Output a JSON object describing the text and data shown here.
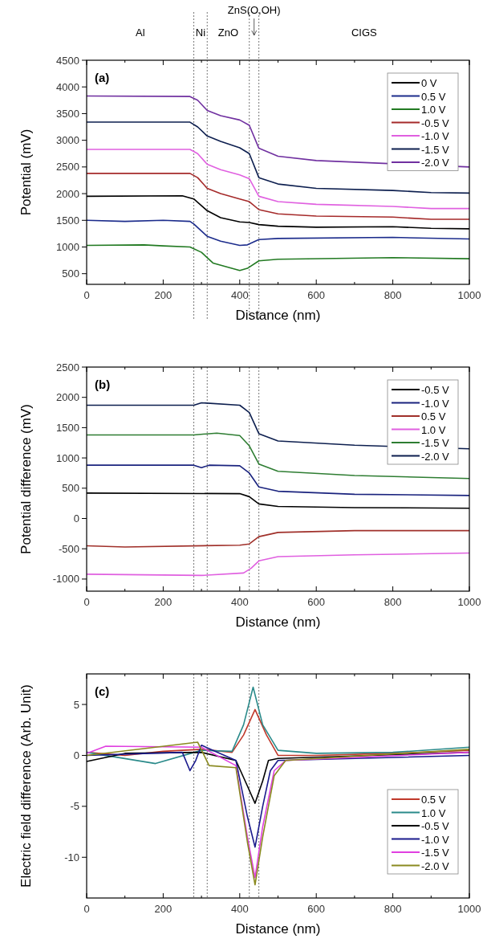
{
  "chart_data": [
    {
      "type": "line",
      "xlabel": "Distance (nm)",
      "ylabel": "Potential (mV)",
      "xlim": [
        0,
        1000
      ],
      "ylim": [
        300,
        4500
      ],
      "xticks": [
        0,
        {
          "value": 100,
          "label": null
        },
        200,
        {
          "value": 300,
          "label": null
        },
        400,
        {
          "value": 500,
          "label": null
        },
        600,
        {
          "value": 700,
          "label": null
        },
        800,
        {
          "value": 900,
          "label": null
        },
        1000
      ],
      "yticks": [
        500,
        1000,
        1500,
        2000,
        2500,
        3000,
        3500,
        4000,
        4500
      ],
      "grid": false,
      "legend": "top right",
      "line_style": "solid",
      "marker": "none",
      "annotations": [
        "(a)",
        "Al",
        "Ni",
        "ZnO",
        "ZnS(O,OH)",
        "CIGS"
      ],
      "ref_lines": [
        {
          "axis": "x",
          "value": 280,
          "line_style": "dotted"
        },
        {
          "axis": "x",
          "value": 315,
          "line_style": "dotted"
        },
        {
          "axis": "x",
          "value": 425,
          "line_style": "dotted"
        },
        {
          "axis": "x",
          "value": 450,
          "line_style": "dotted"
        }
      ],
      "series": [
        {
          "name": "0 V",
          "color": "#000000",
          "x": [
            0,
            250,
            280,
            315,
            350,
            400,
            425,
            450,
            500,
            600,
            800,
            900,
            1000
          ],
          "values": [
            1950,
            1960,
            1900,
            1680,
            1550,
            1470,
            1460,
            1420,
            1390,
            1370,
            1380,
            1350,
            1340
          ]
        },
        {
          "name": "0.5 V",
          "color": "#1c2c8c",
          "x": [
            0,
            100,
            200,
            270,
            280,
            315,
            350,
            400,
            420,
            450,
            500,
            800,
            1000
          ],
          "values": [
            1500,
            1480,
            1500,
            1480,
            1430,
            1200,
            1110,
            1030,
            1040,
            1140,
            1160,
            1180,
            1150
          ]
        },
        {
          "name": "1.0 V",
          "color": "#227a22",
          "x": [
            0,
            150,
            200,
            270,
            300,
            330,
            400,
            420,
            450,
            500,
            800,
            1000
          ],
          "values": [
            1030,
            1040,
            1020,
            1000,
            900,
            700,
            560,
            600,
            740,
            770,
            800,
            780
          ]
        },
        {
          "name": "-0.5 V",
          "color": "#a52a2a",
          "x": [
            0,
            270,
            290,
            315,
            350,
            400,
            425,
            450,
            500,
            600,
            800,
            900,
            1000
          ],
          "values": [
            2380,
            2380,
            2300,
            2100,
            2000,
            1900,
            1850,
            1700,
            1620,
            1580,
            1560,
            1520,
            1520
          ]
        },
        {
          "name": "-1.0 V",
          "color": "#e060e0",
          "x": [
            0,
            270,
            290,
            315,
            350,
            400,
            425,
            450,
            500,
            600,
            800,
            900,
            1000
          ],
          "values": [
            2830,
            2830,
            2750,
            2550,
            2450,
            2350,
            2280,
            1950,
            1850,
            1800,
            1760,
            1720,
            1720
          ]
        },
        {
          "name": "-1.5 V",
          "color": "#0d1f4f",
          "x": [
            0,
            270,
            290,
            315,
            350,
            400,
            425,
            450,
            500,
            600,
            800,
            900,
            1000
          ],
          "values": [
            3340,
            3340,
            3250,
            3080,
            2980,
            2860,
            2750,
            2300,
            2180,
            2100,
            2060,
            2020,
            2010
          ]
        },
        {
          "name": "-2.0 V",
          "color": "#7030a0",
          "x": [
            0,
            270,
            290,
            315,
            350,
            400,
            425,
            450,
            500,
            600,
            800,
            1000
          ],
          "values": [
            3830,
            3820,
            3750,
            3560,
            3460,
            3380,
            3280,
            2850,
            2700,
            2620,
            2560,
            2500
          ]
        }
      ]
    },
    {
      "type": "line",
      "xlabel": "Distance (nm)",
      "ylabel": "Potential difference (mV)",
      "xlim": [
        0,
        1000
      ],
      "ylim": [
        -1200,
        2500
      ],
      "xticks": [
        0,
        {
          "value": 100,
          "label": null
        },
        200,
        {
          "value": 300,
          "label": null
        },
        400,
        {
          "value": 500,
          "label": null
        },
        600,
        {
          "value": 700,
          "label": null
        },
        800,
        {
          "value": 900,
          "label": null
        },
        1000
      ],
      "yticks": [
        -1000,
        -500,
        0,
        500,
        1000,
        1500,
        2000,
        2500
      ],
      "grid": false,
      "legend": "top right",
      "line_style": "solid",
      "marker": "none",
      "annotations": [
        "(b)"
      ],
      "ref_lines": [
        {
          "axis": "x",
          "value": 280,
          "line_style": "dotted"
        },
        {
          "axis": "x",
          "value": 315,
          "line_style": "dotted"
        },
        {
          "axis": "x",
          "value": 425,
          "line_style": "dotted"
        },
        {
          "axis": "x",
          "value": 450,
          "line_style": "dotted"
        }
      ],
      "series": [
        {
          "name": "-0.5 V",
          "color": "#000000",
          "x": [
            0,
            400,
            425,
            450,
            500,
            700,
            1000
          ],
          "values": [
            420,
            410,
            360,
            240,
            200,
            180,
            170
          ]
        },
        {
          "name": "-1.0 V",
          "color": "#1a237e",
          "x": [
            0,
            280,
            300,
            320,
            400,
            425,
            450,
            500,
            700,
            1000
          ],
          "values": [
            880,
            880,
            840,
            880,
            870,
            750,
            520,
            450,
            400,
            380
          ]
        },
        {
          "name": "0.5 V",
          "color": "#a0302a",
          "x": [
            0,
            100,
            400,
            425,
            450,
            500,
            700,
            1000
          ],
          "values": [
            -450,
            -470,
            -440,
            -420,
            -300,
            -230,
            -200,
            -200
          ]
        },
        {
          "name": "1.0 V",
          "color": "#e060e0",
          "x": [
            0,
            300,
            410,
            430,
            450,
            500,
            700,
            1000
          ],
          "values": [
            -920,
            -940,
            -900,
            -820,
            -700,
            -630,
            -600,
            -570
          ]
        },
        {
          "name": "-1.5 V",
          "color": "#2e7d32",
          "x": [
            0,
            280,
            340,
            400,
            425,
            450,
            500,
            700,
            1000
          ],
          "values": [
            1380,
            1380,
            1410,
            1370,
            1200,
            900,
            780,
            710,
            660
          ]
        },
        {
          "name": "-2.0 V",
          "color": "#0d1f4f",
          "x": [
            0,
            280,
            300,
            400,
            425,
            450,
            500,
            700,
            1000
          ],
          "values": [
            1870,
            1870,
            1910,
            1870,
            1750,
            1400,
            1280,
            1210,
            1150
          ]
        }
      ]
    },
    {
      "type": "line",
      "xlabel": "Distance (nm)",
      "ylabel": "Electric field difference (Arb. Unit)",
      "xlim": [
        0,
        1000
      ],
      "ylim": [
        -14,
        8
      ],
      "xticks": [
        0,
        {
          "value": 100,
          "label": null
        },
        200,
        {
          "value": 300,
          "label": null
        },
        400,
        {
          "value": 500,
          "label": null
        },
        600,
        {
          "value": 700,
          "label": null
        },
        800,
        {
          "value": 900,
          "label": null
        },
        1000
      ],
      "yticks": [
        -10,
        -5,
        0,
        5
      ],
      "grid": false,
      "legend": "bottom right",
      "line_style": "solid",
      "marker": "none",
      "annotations": [
        "(c)"
      ],
      "ref_lines": [
        {
          "axis": "x",
          "value": 280,
          "line_style": "dotted"
        },
        {
          "axis": "x",
          "value": 315,
          "line_style": "dotted"
        },
        {
          "axis": "x",
          "value": 425,
          "line_style": "dotted"
        },
        {
          "axis": "x",
          "value": 450,
          "line_style": "dotted"
        }
      ],
      "series": [
        {
          "name": "0.5 V",
          "color": "#c0392b",
          "x": [
            0,
            100,
            200,
            300,
            380,
            410,
            440,
            470,
            500,
            600,
            800,
            1000
          ],
          "values": [
            0.3,
            0,
            0.4,
            0.6,
            0.3,
            2,
            4.5,
            2,
            0,
            0,
            0.2,
            0.5
          ]
        },
        {
          "name": "1.0 V",
          "color": "#2a8a8a",
          "x": [
            0,
            180,
            300,
            380,
            410,
            435,
            460,
            500,
            600,
            800,
            1000
          ],
          "values": [
            0.3,
            -0.8,
            0.5,
            0.4,
            3,
            6.7,
            3,
            0.5,
            0.2,
            0.3,
            0.8
          ]
        },
        {
          "name": "-0.5 V",
          "color": "#000000",
          "x": [
            0,
            100,
            300,
            390,
            420,
            440,
            460,
            475,
            500,
            1000
          ],
          "values": [
            -0.6,
            0.2,
            0.3,
            -0.5,
            -3,
            -4.7,
            -2.5,
            -0.5,
            -0.3,
            0.3
          ]
        },
        {
          "name": "-1.0 V",
          "color": "#1a1a8c",
          "x": [
            0,
            250,
            270,
            285,
            300,
            390,
            420,
            440,
            460,
            480,
            500,
            1000
          ],
          "values": [
            0,
            0.3,
            -1.5,
            -0.5,
            1,
            -0.5,
            -6,
            -9,
            -5,
            -1.5,
            -0.5,
            0
          ]
        },
        {
          "name": "-1.5 V",
          "color": "#e040e0",
          "x": [
            0,
            50,
            300,
            390,
            420,
            440,
            460,
            490,
            520,
            1000
          ],
          "values": [
            0.2,
            0.9,
            0.8,
            -1,
            -8,
            -12,
            -7,
            -1.5,
            -0.5,
            0.3
          ]
        },
        {
          "name": "-2.0 V",
          "color": "#8a8a20",
          "x": [
            0,
            290,
            320,
            390,
            420,
            440,
            460,
            490,
            520,
            1000
          ],
          "values": [
            0,
            1.3,
            -1,
            -1.2,
            -8.5,
            -12.7,
            -8,
            -2,
            -0.5,
            0.6
          ]
        }
      ]
    }
  ]
}
